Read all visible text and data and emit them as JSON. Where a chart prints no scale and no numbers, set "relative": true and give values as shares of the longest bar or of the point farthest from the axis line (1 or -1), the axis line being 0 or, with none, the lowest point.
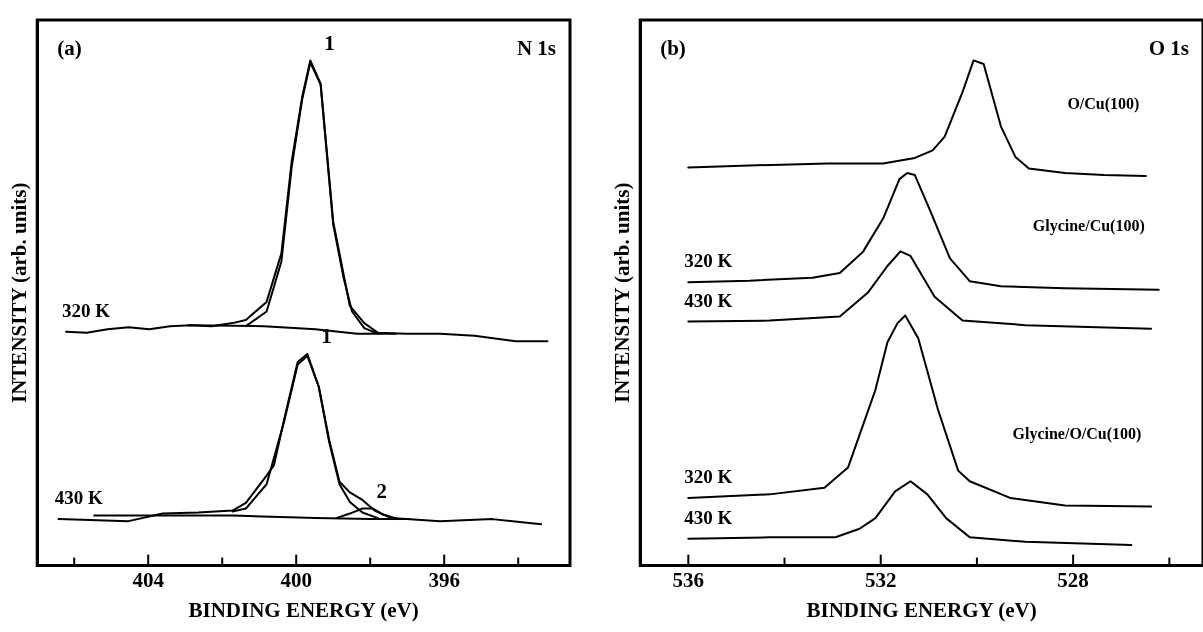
{
  "chart_data": [
    {
      "type": "line",
      "relative": true,
      "xlabel": "BINDING ENERGY (eV)",
      "ylabel": "INTENSITY (arb. units)",
      "legend": false,
      "xlim": [
        407,
        392.6
      ],
      "xticks": [
        {
          "value": 406,
          "label": null
        },
        404,
        {
          "value": 402,
          "label": null
        },
        400,
        {
          "value": 398,
          "label": null
        },
        396,
        {
          "value": 394,
          "label": null
        }
      ],
      "annotations": [
        "(a)",
        "N 1s",
        {
          "text": "1",
          "x": 399.62,
          "y": 1.0
        },
        {
          "text": "1",
          "x": 399.7,
          "y": 0.419
        },
        {
          "text": "2",
          "x": 398.21,
          "y": 0.113
        }
      ],
      "series": [
        {
          "name": "320 K",
          "color": "#000000",
          "x": [
            406.22,
            405.66,
            405.1,
            404.53,
            403.97,
            403.41,
            402.85,
            402.29,
            401.72,
            401.36,
            400.8,
            400.4,
            400.12,
            399.84,
            399.62,
            399.34,
            399.0,
            398.72,
            398.55,
            398.16,
            397.79,
            397.03,
            396.11,
            395.18,
            394.06,
            393.21
          ],
          "values": [
            0.463,
            0.461,
            0.468,
            0.472,
            0.468,
            0.474,
            0.476,
            0.474,
            0.48,
            0.486,
            0.522,
            0.618,
            0.801,
            0.927,
            1.0,
            0.954,
            0.681,
            0.577,
            0.514,
            0.48,
            0.461,
            0.459,
            0.459,
            0.455,
            0.444,
            0.444
          ]
        },
        {
          "color": "#000000",
          "x": [
            401.36,
            400.8,
            400.4,
            400.12,
            399.84,
            399.62,
            399.34,
            399.0,
            398.72,
            398.49,
            398.16,
            397.79
          ],
          "values": [
            0.474,
            0.503,
            0.602,
            0.79,
            0.922,
            0.996,
            0.952,
            0.675,
            0.57,
            0.503,
            0.47,
            0.459
          ]
        },
        {
          "color": "#000000",
          "x": [
            402.93,
            400.88,
            399.48,
            398.35,
            397.31
          ],
          "values": [
            0.476,
            0.474,
            0.468,
            0.459,
            0.459
          ]
        },
        {
          "name": "430 K",
          "color": "#000000",
          "x": [
            406.42,
            404.53,
            403.61,
            402.65,
            401.72,
            401.36,
            400.8,
            400.6,
            400.32,
            399.96,
            399.7,
            399.39,
            399.11,
            398.83,
            398.55,
            398.21,
            397.88,
            397.43,
            396.11,
            394.7,
            393.38
          ],
          "values": [
            0.092,
            0.088,
            0.103,
            0.105,
            0.109,
            0.124,
            0.178,
            0.199,
            0.291,
            0.403,
            0.419,
            0.354,
            0.249,
            0.166,
            0.145,
            0.13,
            0.109,
            0.094,
            0.088,
            0.092,
            0.082
          ]
        },
        {
          "color": "#000000",
          "x": [
            401.72,
            401.36,
            400.8,
            400.32,
            399.96,
            399.7,
            399.39,
            399.11,
            398.83,
            398.55,
            398.21,
            397.79
          ],
          "values": [
            0.107,
            0.113,
            0.161,
            0.287,
            0.398,
            0.415,
            0.354,
            0.245,
            0.161,
            0.126,
            0.105,
            0.094
          ]
        },
        {
          "color": "#000000",
          "x": [
            398.92,
            398.55,
            398.21,
            397.93,
            397.65,
            397.23
          ],
          "values": [
            0.094,
            0.103,
            0.113,
            0.113,
            0.101,
            0.092
          ]
        },
        {
          "color": "#000000",
          "x": [
            405.46,
            401.72,
            399.48,
            397.99,
            396.95
          ],
          "values": [
            0.099,
            0.099,
            0.094,
            0.092,
            0.092
          ]
        }
      ]
    },
    {
      "type": "line",
      "relative": true,
      "xlabel": "BINDING ENERGY (eV)",
      "ylabel": "INTENSITY (arb. units)",
      "legend": false,
      "xlim": [
        537,
        525.3
      ],
      "xticks": [
        536,
        {
          "value": 534,
          "label": null
        },
        532,
        {
          "value": 530,
          "label": null
        },
        528,
        {
          "value": 526,
          "label": null
        }
      ],
      "annotations": [
        "(b)",
        "O 1s",
        "O/Cu(100)",
        "Glycine/Cu(100)",
        "Glycine/O/Cu(100)"
      ],
      "series": [
        {
          "color": "#000000",
          "x": [
            536.0,
            534.73,
            533.1,
            531.95,
            531.29,
            530.92,
            530.67,
            530.3,
            530.07,
            529.86,
            529.5,
            529.2,
            528.92,
            528.17,
            527.36,
            526.49
          ],
          "values": [
            0.788,
            0.792,
            0.796,
            0.796,
            0.807,
            0.822,
            0.849,
            0.937,
            1.0,
            0.993,
            0.869,
            0.809,
            0.786,
            0.777,
            0.773,
            0.771
          ]
        },
        {
          "name": "320 K",
          "color": "#000000",
          "x": [
            536.0,
            534.73,
            533.42,
            532.85,
            532.37,
            531.95,
            531.61,
            531.45,
            531.29,
            530.97,
            530.56,
            530.15,
            529.5,
            528.17,
            526.22
          ],
          "values": [
            0.561,
            0.564,
            0.57,
            0.579,
            0.621,
            0.687,
            0.765,
            0.777,
            0.773,
            0.702,
            0.608,
            0.563,
            0.553,
            0.549,
            0.546
          ]
        },
        {
          "name": "430 K",
          "color": "#000000",
          "x": [
            536.0,
            534.31,
            532.85,
            532.27,
            531.86,
            531.59,
            531.38,
            530.88,
            530.3,
            528.99,
            526.38
          ],
          "values": [
            0.483,
            0.485,
            0.493,
            0.54,
            0.593,
            0.622,
            0.613,
            0.532,
            0.485,
            0.476,
            0.469
          ]
        },
        {
          "name": "320 K",
          "color": "#000000",
          "x": [
            536.0,
            534.31,
            533.17,
            532.68,
            532.11,
            531.86,
            531.65,
            531.49,
            531.22,
            530.81,
            530.39,
            530.15,
            529.31,
            528.17,
            526.38
          ],
          "values": [
            0.134,
            0.141,
            0.154,
            0.194,
            0.348,
            0.442,
            0.48,
            0.495,
            0.45,
            0.309,
            0.188,
            0.167,
            0.134,
            0.119,
            0.117
          ]
        },
        {
          "name": "430 K",
          "color": "#000000",
          "x": [
            536.0,
            534.31,
            532.94,
            532.44,
            532.11,
            531.7,
            531.38,
            531.03,
            530.64,
            530.15,
            528.99,
            526.79
          ],
          "values": [
            0.053,
            0.056,
            0.056,
            0.073,
            0.094,
            0.147,
            0.167,
            0.141,
            0.094,
            0.056,
            0.047,
            0.041
          ]
        }
      ]
    }
  ]
}
